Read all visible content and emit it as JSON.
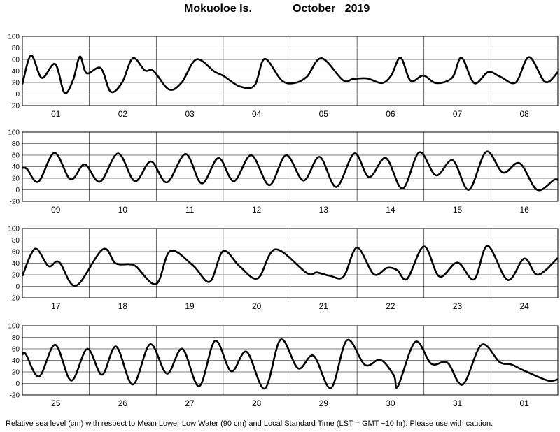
{
  "title": {
    "station": "Mokuoloe Is.",
    "month_year": "October   2019"
  },
  "footnote": "Relative sea level (cm) with respect to Mean Lower Low Water (90 cm) and Local Standard Time (LST = GMT −10 hr). Please use with caution.",
  "chart_data": [
    {
      "type": "line",
      "ylim": [
        -20,
        100
      ],
      "yticks": [
        -20,
        0,
        20,
        40,
        60,
        80,
        100
      ],
      "grid": true,
      "x_unit": "day",
      "categories": [
        "01",
        "02",
        "03",
        "04",
        "05",
        "06",
        "07",
        "08"
      ],
      "series": [
        {
          "x": [
            0,
            0.13,
            0.29,
            0.49,
            0.63,
            0.76,
            0.86,
            0.96,
            1.17,
            1.32,
            1.49,
            1.65,
            1.83,
            1.96,
            2.19,
            2.38,
            2.6,
            2.87,
            3.01,
            3.25,
            3.47,
            3.62,
            3.87,
            4.06,
            4.25,
            4.47,
            4.79,
            4.94,
            5.15,
            5.37,
            5.51,
            5.65,
            5.8,
            5.99,
            6.18,
            6.42,
            6.56,
            6.75,
            6.96,
            7.14,
            7.37,
            7.57,
            7.81,
            8.0
          ],
          "y": [
            17,
            67,
            28,
            52,
            2,
            25,
            65,
            36,
            45,
            4,
            20,
            62,
            41,
            40,
            8,
            20,
            60,
            39,
            31,
            13,
            15,
            61,
            24,
            19,
            30,
            62,
            24,
            26,
            27,
            19,
            32,
            63,
            23,
            32,
            19,
            28,
            63,
            19,
            38,
            30,
            20,
            64,
            21,
            38
          ]
        }
      ]
    },
    {
      "type": "line",
      "ylim": [
        -20,
        100
      ],
      "yticks": [
        -20,
        0,
        20,
        40,
        60,
        80,
        100
      ],
      "grid": true,
      "x_unit": "day",
      "categories": [
        "09",
        "10",
        "11",
        "12",
        "13",
        "14",
        "15",
        "16"
      ],
      "series": [
        {
          "x": [
            0,
            0.07,
            0.24,
            0.48,
            0.72,
            0.93,
            1.16,
            1.43,
            1.68,
            1.92,
            2.16,
            2.44,
            2.68,
            2.93,
            3.16,
            3.42,
            3.69,
            3.94,
            4.2,
            4.44,
            4.69,
            4.96,
            5.18,
            5.43,
            5.68,
            5.93,
            6.18,
            6.43,
            6.67,
            6.93,
            7.18,
            7.43,
            7.69,
            7.94,
            8.0
          ],
          "y": [
            38,
            36,
            14,
            64,
            18,
            44,
            14,
            63,
            15,
            49,
            13,
            62,
            11,
            55,
            15,
            60,
            8,
            60,
            16,
            57,
            5,
            63,
            22,
            55,
            2,
            65,
            25,
            51,
            0,
            66,
            30,
            46,
            0,
            17,
            17
          ]
        }
      ]
    },
    {
      "type": "line",
      "ylim": [
        -20,
        100
      ],
      "yticks": [
        -20,
        0,
        20,
        40,
        60,
        80,
        100
      ],
      "grid": true,
      "x_unit": "day",
      "categories": [
        "17",
        "18",
        "19",
        "20",
        "21",
        "22",
        "23",
        "24"
      ],
      "series": [
        {
          "x": [
            0,
            0.19,
            0.39,
            0.55,
            0.8,
            1.2,
            1.39,
            1.6,
            1.7,
            2.0,
            2.21,
            2.55,
            2.8,
            3.0,
            3.25,
            3.52,
            3.78,
            4.25,
            4.4,
            4.6,
            4.8,
            5.0,
            5.25,
            5.45,
            5.6,
            5.75,
            6.0,
            6.23,
            6.5,
            6.75,
            6.95,
            7.25,
            7.5,
            7.7,
            8.0
          ],
          "y": [
            18,
            65,
            35,
            42,
            1,
            64,
            40,
            38,
            34,
            4,
            61,
            36,
            8,
            61,
            34,
            14,
            64,
            23,
            24,
            18,
            17,
            67,
            21,
            32,
            28,
            13,
            69,
            17,
            41,
            12,
            70,
            11,
            48,
            20,
            49
          ]
        }
      ]
    },
    {
      "type": "line",
      "ylim": [
        -20,
        100
      ],
      "yticks": [
        -20,
        0,
        20,
        40,
        60,
        80,
        100
      ],
      "grid": true,
      "x_unit": "day",
      "categories": [
        "25",
        "26",
        "27",
        "28",
        "29",
        "30",
        "31",
        "01"
      ],
      "series": [
        {
          "x": [
            0,
            0.05,
            0.25,
            0.49,
            0.73,
            0.97,
            1.19,
            1.4,
            1.65,
            1.91,
            2.16,
            2.39,
            2.64,
            2.88,
            3.12,
            3.35,
            3.62,
            3.86,
            4.12,
            4.35,
            4.61,
            4.85,
            5.12,
            5.35,
            5.55,
            5.61,
            5.87,
            6.11,
            6.35,
            6.58,
            6.86,
            7.13,
            7.3,
            7.5,
            7.85,
            8.0
          ],
          "y": [
            50,
            51,
            12,
            67,
            5,
            60,
            15,
            64,
            -2,
            68,
            17,
            60,
            -5,
            74,
            21,
            55,
            -9,
            76,
            26,
            48,
            -8,
            75,
            32,
            41,
            14,
            -5,
            72,
            34,
            36,
            -2,
            67,
            37,
            33,
            22,
            5,
            7
          ]
        }
      ]
    }
  ]
}
